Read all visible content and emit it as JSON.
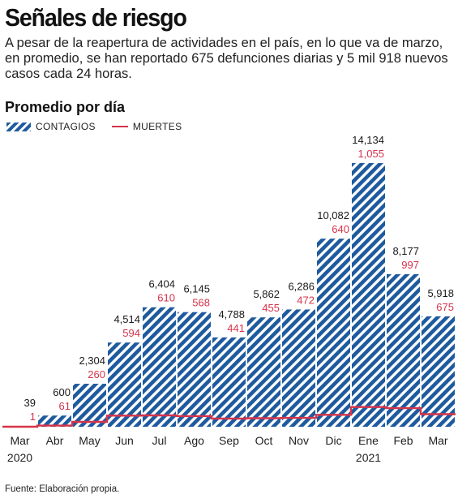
{
  "header": {
    "title": "Señales de riesgo",
    "subtitle": "A pesar de la reapertura de actividades en el país, en lo que va de marzo, en promedio, se han reportado 675 defunciones diarias y 5 mil 918  nuevos casos cada 24 horas.",
    "section": "Promedio por día"
  },
  "legend": {
    "series_a": "CONTAGIOS",
    "series_b": "MUERTES"
  },
  "colors": {
    "bar": "#1e5a9e",
    "line": "#d6334a",
    "death_label": "#d6334a",
    "case_label": "#1a1a1a"
  },
  "source": "Fuente: Elaboración propia.",
  "chart_data": {
    "type": "bar",
    "categories": [
      "Mar",
      "Abr",
      "May",
      "Jun",
      "Jul",
      "Ago",
      "Sep",
      "Oct",
      "Nov",
      "Dic",
      "Ene",
      "Feb",
      "Mar"
    ],
    "year_labels": [
      "2020",
      "",
      "",
      "",
      "",
      "",
      "",
      "",
      "",
      "",
      "2021",
      "",
      ""
    ],
    "series": [
      {
        "name": "CONTAGIOS",
        "type": "bar",
        "values": [
          39,
          600,
          2304,
          4514,
          6404,
          6145,
          4788,
          5862,
          6286,
          10082,
          14134,
          8177,
          5918
        ]
      },
      {
        "name": "MUERTES",
        "type": "line",
        "values": [
          1,
          61,
          260,
          594,
          610,
          568,
          441,
          455,
          472,
          640,
          1055,
          997,
          675
        ]
      }
    ],
    "value_labels_cases": [
      "39",
      "600",
      "2,304",
      "4,514",
      "6,404",
      "6,145",
      "4,788",
      "5,862",
      "6,286",
      "10,082",
      "14,134",
      "8,177",
      "5,918"
    ],
    "value_labels_deaths": [
      "1",
      "61",
      "260",
      "594",
      "610",
      "568",
      "441",
      "455",
      "472",
      "640",
      "1,055",
      "997",
      "675"
    ],
    "ylim": [
      0,
      14134
    ],
    "grid": false
  }
}
